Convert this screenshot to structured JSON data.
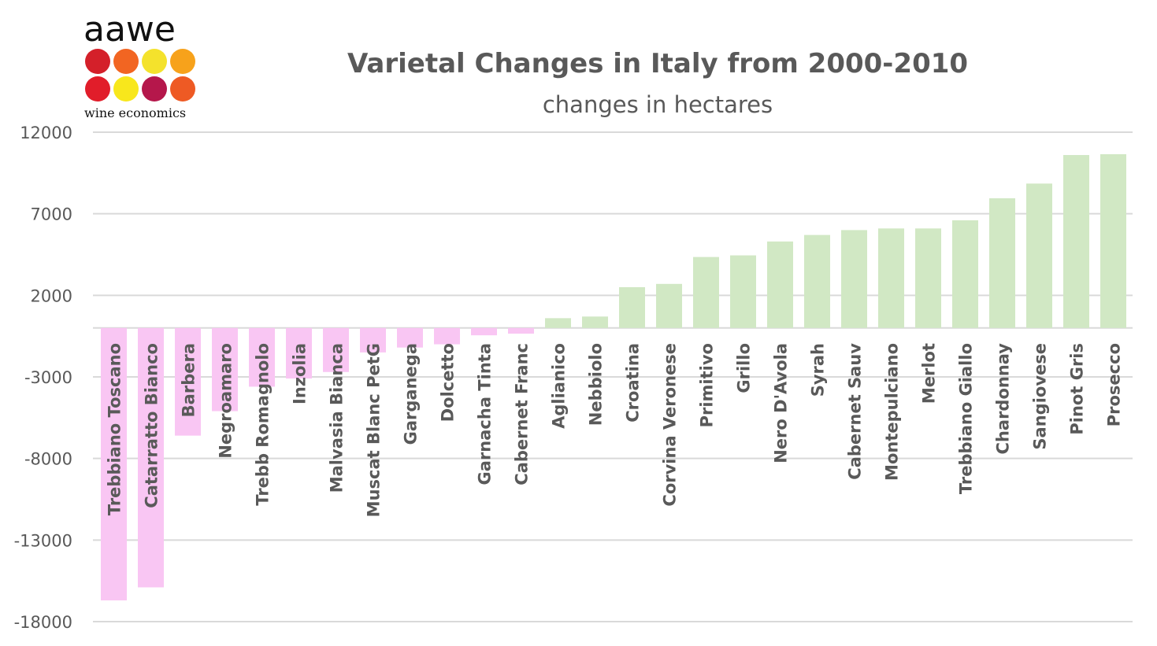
{
  "logo": {
    "name": "aawe",
    "tagline": "wine economics",
    "dot_colors": [
      "#d4202a",
      "#f26522",
      "#f4e22c",
      "#f7a21b",
      "#e11d2a",
      "#f8e71c",
      "#b5174b",
      "#ee5a24"
    ]
  },
  "chart_data": {
    "type": "bar",
    "title": "Varietal Changes in Italy from 2000-2010",
    "subtitle": "changes in hectares",
    "xlabel": "",
    "ylabel": "",
    "ylim": [
      -18000,
      12000
    ],
    "yticks": [
      12000,
      7000,
      2000,
      -3000,
      -8000,
      -13000,
      -18000
    ],
    "grid": true,
    "negative_color": "#f9c6f3",
    "positive_color": "#d1e8c4",
    "categories": [
      "Trebbiano Toscano",
      "Catarratto Bianco",
      "Barbera",
      "Negroamaro",
      "Trebb Romagnolo",
      "Inzolia",
      "Malvasia Bianca",
      "Muscat Blanc PetG",
      "Garganega",
      "Dolcetto",
      "Garnacha Tinta",
      "Cabernet Franc",
      "Aglianico",
      "Nebbiolo",
      "Croatina",
      "Corvina Veronese",
      "Primitivo",
      "Grillo",
      "Nero D'Avola",
      "Syrah",
      "Cabernet Sauv",
      "Montepulciano",
      "Merlot",
      "Trebbiano Giallo",
      "Chardonnay",
      "Sangiovese",
      "Pinot Gris",
      "Prosecco"
    ],
    "values": [
      -16700,
      -15900,
      -6600,
      -5100,
      -3600,
      -3100,
      -2700,
      -1500,
      -1200,
      -1000,
      -450,
      -350,
      600,
      700,
      2500,
      2700,
      4350,
      4450,
      5300,
      5700,
      6000,
      6100,
      6100,
      6600,
      7950,
      8850,
      10600,
      10650
    ]
  }
}
